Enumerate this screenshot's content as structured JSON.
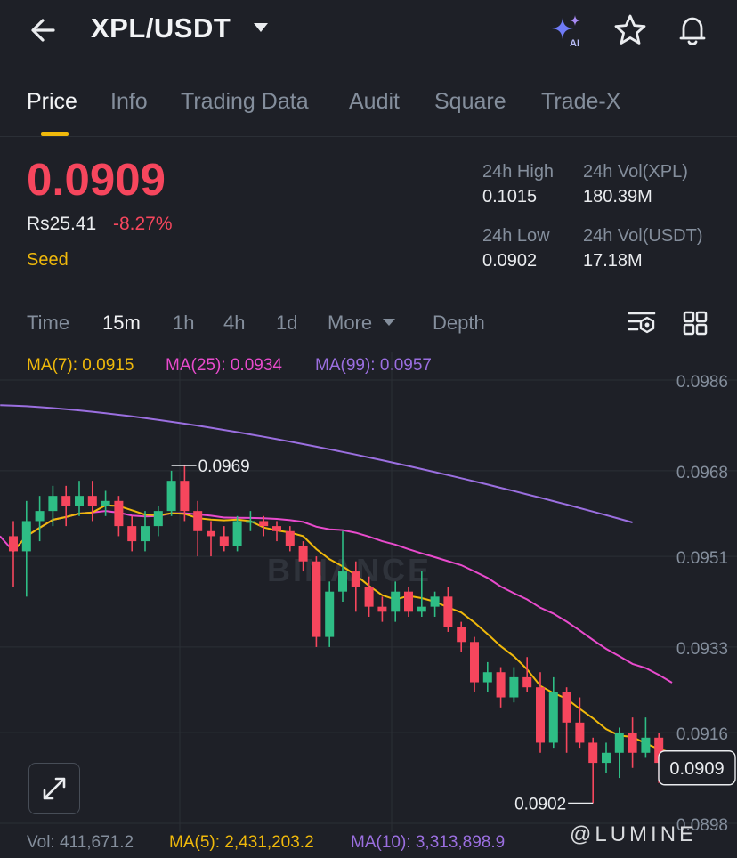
{
  "header": {
    "back_icon": "arrow-left-icon",
    "pair": "XPL/USDT",
    "icons": [
      "ai-sparkle-icon",
      "star-icon",
      "bell-icon"
    ],
    "ai_label": "AI"
  },
  "tabs": [
    {
      "label": "Price",
      "active": true
    },
    {
      "label": "Info"
    },
    {
      "label": "Trading Data"
    },
    {
      "label": "Audit"
    },
    {
      "label": "Square"
    },
    {
      "label": "Trade-X"
    }
  ],
  "price": {
    "last": "0.0909",
    "fiat": "Rs25.41",
    "change": "-8.27%",
    "tag": "Seed"
  },
  "stats": {
    "high_label": "24h High",
    "high": "0.1015",
    "low_label": "24h Low",
    "low": "0.0902",
    "vol_base_label": "24h Vol(XPL)",
    "vol_base": "180.39M",
    "vol_quote_label": "24h Vol(USDT)",
    "vol_quote": "17.18M"
  },
  "intervals": [
    "Time",
    "15m",
    "1h",
    "4h",
    "1d",
    "More",
    "Depth"
  ],
  "active_interval": "15m",
  "ma": {
    "ma7": "MA(7): 0.0915",
    "ma25": "MA(25): 0.0934",
    "ma99": "MA(99): 0.0957"
  },
  "colors": {
    "up": "#2ebd85",
    "down": "#f6465d",
    "ma7": "#f0b90b",
    "ma25": "#e94bcd",
    "ma99": "#9b6fe0",
    "accent": "#f0b90b"
  },
  "chart_data": {
    "type": "candlestick",
    "y_ticks": [
      "0.0986",
      "0.0968",
      "0.0951",
      "0.0933",
      "0.0916",
      "0.0898"
    ],
    "ylim": [
      0.0898,
      0.0986
    ],
    "high_marker": "0.0969",
    "low_marker": "0.0902",
    "current_price": "0.0909",
    "candles": [
      [
        0.0955,
        0.0952,
        0.0958,
        0.0945
      ],
      [
        0.0952,
        0.0958,
        0.0962,
        0.0943
      ],
      [
        0.0958,
        0.096,
        0.0963,
        0.0954
      ],
      [
        0.096,
        0.0963,
        0.0965,
        0.0957
      ],
      [
        0.0963,
        0.0961,
        0.0965,
        0.0957
      ],
      [
        0.0961,
        0.0963,
        0.0966,
        0.0959
      ],
      [
        0.0963,
        0.0961,
        0.0966,
        0.0958
      ],
      [
        0.0961,
        0.0962,
        0.0964,
        0.0959
      ],
      [
        0.0962,
        0.0957,
        0.0963,
        0.0955
      ],
      [
        0.0957,
        0.0954,
        0.0959,
        0.0952
      ],
      [
        0.0954,
        0.0957,
        0.096,
        0.0952
      ],
      [
        0.0957,
        0.096,
        0.0961,
        0.0955
      ],
      [
        0.096,
        0.0966,
        0.0968,
        0.0959
      ],
      [
        0.0966,
        0.096,
        0.0969,
        0.0958
      ],
      [
        0.096,
        0.0956,
        0.0962,
        0.0951
      ],
      [
        0.0956,
        0.0955,
        0.0958,
        0.0951
      ],
      [
        0.0955,
        0.0953,
        0.0957,
        0.0952
      ],
      [
        0.0953,
        0.0958,
        0.0959,
        0.0952
      ],
      [
        0.0958,
        0.0958,
        0.096,
        0.0956
      ],
      [
        0.0958,
        0.0957,
        0.0959,
        0.0955
      ],
      [
        0.0957,
        0.0956,
        0.0958,
        0.0954
      ],
      [
        0.0956,
        0.0953,
        0.0957,
        0.0952
      ],
      [
        0.0953,
        0.095,
        0.0954,
        0.0948
      ],
      [
        0.095,
        0.0935,
        0.0951,
        0.0933
      ],
      [
        0.0935,
        0.0944,
        0.0946,
        0.0933
      ],
      [
        0.0944,
        0.0948,
        0.0956,
        0.0942
      ],
      [
        0.0948,
        0.0945,
        0.095,
        0.094
      ],
      [
        0.0945,
        0.0941,
        0.0947,
        0.0939
      ],
      [
        0.0941,
        0.094,
        0.0943,
        0.0938
      ],
      [
        0.094,
        0.0944,
        0.0946,
        0.0938
      ],
      [
        0.0944,
        0.094,
        0.0945,
        0.0939
      ],
      [
        0.094,
        0.0941,
        0.0948,
        0.0939
      ],
      [
        0.0941,
        0.0943,
        0.0944,
        0.0939
      ],
      [
        0.0943,
        0.0937,
        0.0945,
        0.0936
      ],
      [
        0.0937,
        0.0934,
        0.0938,
        0.0932
      ],
      [
        0.0934,
        0.0926,
        0.0935,
        0.0924
      ],
      [
        0.0926,
        0.0928,
        0.093,
        0.0924
      ],
      [
        0.0928,
        0.0923,
        0.0929,
        0.0921
      ],
      [
        0.0923,
        0.0927,
        0.0929,
        0.0922
      ],
      [
        0.0927,
        0.0925,
        0.0931,
        0.0924
      ],
      [
        0.0925,
        0.0914,
        0.0928,
        0.0912
      ],
      [
        0.0914,
        0.0924,
        0.0927,
        0.0913
      ],
      [
        0.0924,
        0.0918,
        0.0925,
        0.0912
      ],
      [
        0.0918,
        0.0914,
        0.0923,
        0.0913
      ],
      [
        0.0914,
        0.091,
        0.0915,
        0.0902
      ],
      [
        0.091,
        0.0912,
        0.0914,
        0.0908
      ],
      [
        0.0912,
        0.0916,
        0.0917,
        0.0907
      ],
      [
        0.0916,
        0.0912,
        0.0919,
        0.0909
      ],
      [
        0.0912,
        0.0915,
        0.0919,
        0.0911
      ],
      [
        0.0915,
        0.091,
        0.0916,
        0.0906
      ],
      [
        0.091,
        0.0909,
        0.0911,
        0.0908
      ]
    ]
  },
  "volume": {
    "vol": "Vol: 411,671.2",
    "ma5": "MA(5): 2,431,203.2",
    "ma10": "MA(10): 3,313,898.9"
  },
  "watermark": "@LUMINE",
  "chart_watermark": "BINANCE"
}
